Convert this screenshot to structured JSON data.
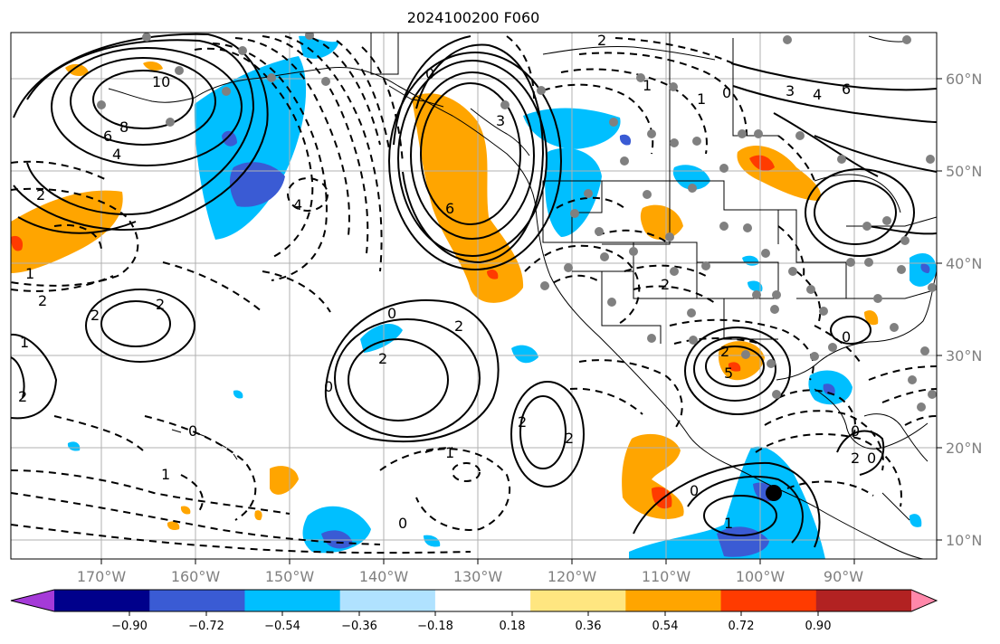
{
  "title": "2024100200 F060",
  "lon_labels": [
    "170°W",
    "160°W",
    "150°W",
    "140°W",
    "130°W",
    "120°W",
    "110°W",
    "100°W",
    "90°W"
  ],
  "lat_labels": [
    "60°N",
    "50°N",
    "40°N",
    "30°N",
    "20°N",
    "10°N"
  ],
  "colorbar": {
    "ticks": [
      "−0.90",
      "−0.72",
      "−0.54",
      "−0.36",
      "−0.18",
      "0.18",
      "0.36",
      "0.54",
      "0.72",
      "0.90"
    ],
    "colors": [
      "#a53ad8",
      "#00008b",
      "#3a5bd4",
      "#00bfff",
      "#b0e2ff",
      "#ffffff",
      "#ffe680",
      "#ffa500",
      "#ff3b00",
      "#b22222",
      "#ff88aa"
    ]
  },
  "contour_labels": [
    "10",
    "8",
    "6",
    "4",
    "2",
    "0",
    "6",
    "3",
    "2",
    "1",
    "0",
    "2",
    "2",
    "2",
    "0",
    "1",
    "2",
    "2",
    "0",
    "1",
    "3",
    "4",
    "6",
    "0",
    "5",
    "2",
    "2",
    "1",
    "0",
    "1",
    "0",
    "2",
    "2",
    "4",
    "0",
    "2",
    "1",
    "1",
    "0",
    "2",
    "0"
  ],
  "colors": {
    "contour": "#000000",
    "grid": "#b0b0b0",
    "coast": "#000000",
    "station": "#808080",
    "marker": "#000000"
  }
}
